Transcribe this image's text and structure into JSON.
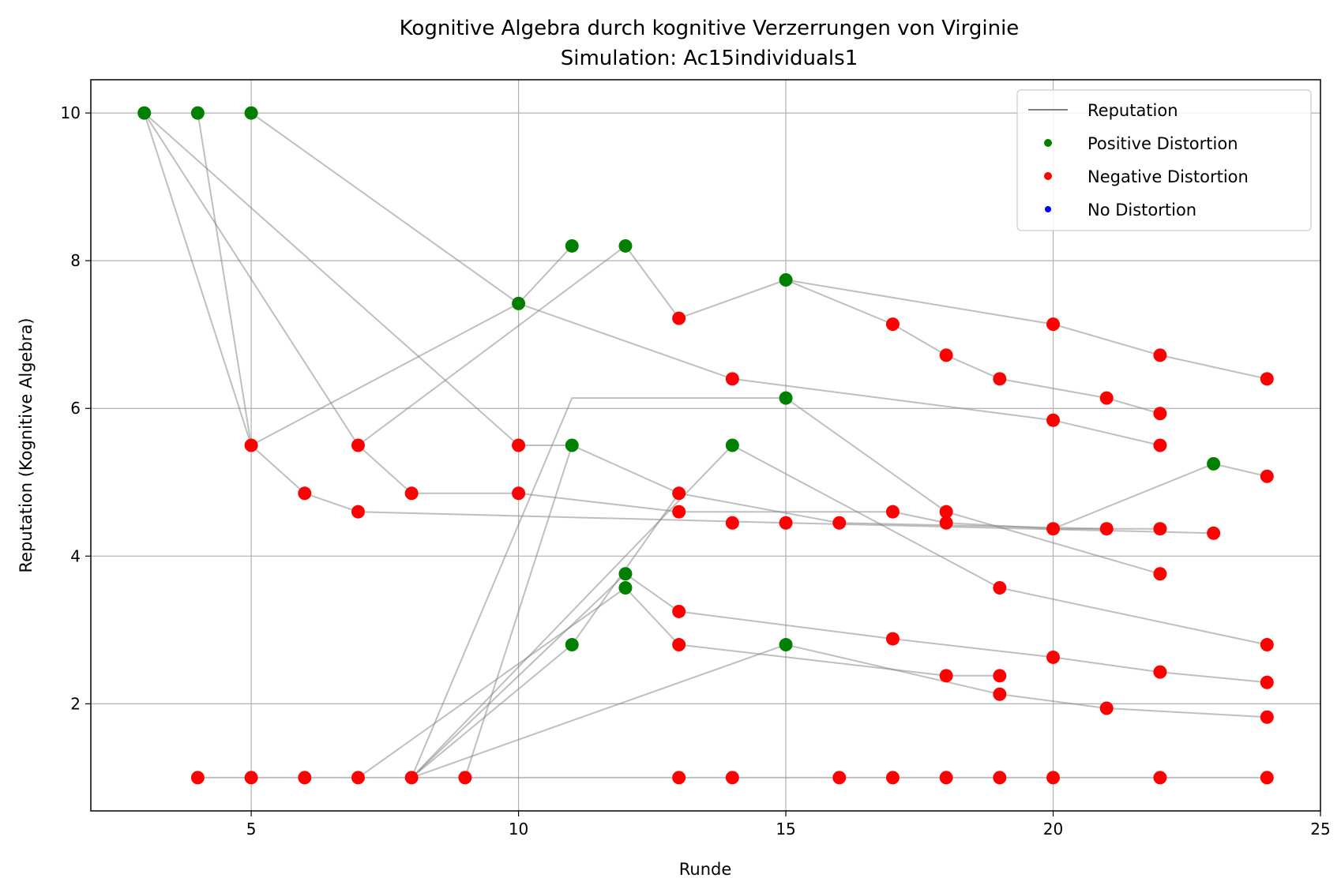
{
  "chart_data": {
    "type": "scatter",
    "title": "Kognitive Algebra durch kognitive Verzerrungen von Virginie",
    "subtitle": "Simulation: Ac15individuals1",
    "xlabel": "Runde",
    "ylabel": "Reputation (Kognitive Algebra)",
    "xlim": [
      2.0,
      25.0
    ],
    "ylim": [
      0.55,
      10.45
    ],
    "xticks": [
      5,
      10,
      15,
      20,
      25
    ],
    "yticks": [
      2,
      4,
      6,
      8,
      10
    ],
    "grid": true,
    "legend_position": "top-right",
    "legend": [
      "Reputation",
      "Positive Distortion",
      "Negative Distortion",
      "No Distortion"
    ],
    "colors": {
      "positive": "#008000",
      "negative": "#ff0000",
      "none": "#0000ff",
      "line": "#808080"
    },
    "trajectories": [
      [
        [
          3,
          10
        ],
        [
          7,
          5.5
        ],
        [
          8,
          4.85
        ],
        [
          10,
          4.85
        ],
        [
          13,
          4.6
        ],
        [
          17,
          4.6
        ],
        [
          18,
          4.45
        ],
        [
          20,
          4.37
        ],
        [
          22,
          4.37
        ]
      ],
      [
        [
          3,
          10
        ],
        [
          5,
          5.5
        ],
        [
          6,
          4.85
        ],
        [
          7,
          4.6
        ],
        [
          15,
          4.45
        ],
        [
          23,
          4.31
        ]
      ],
      [
        [
          4,
          10
        ],
        [
          5,
          5.5
        ],
        [
          10,
          7.42
        ],
        [
          11,
          8.2
        ]
      ],
      [
        [
          5,
          10
        ],
        [
          10,
          7.42
        ],
        [
          14,
          6.4
        ],
        [
          20,
          5.84
        ],
        [
          22,
          5.5
        ]
      ],
      [
        [
          3,
          10
        ],
        [
          10,
          5.5
        ],
        [
          11,
          5.5
        ],
        [
          13,
          4.85
        ],
        [
          16,
          4.45
        ],
        [
          21,
          4.37
        ]
      ],
      [
        [
          7,
          5.5
        ],
        [
          12,
          8.2
        ],
        [
          13,
          7.22
        ],
        [
          15,
          7.74
        ],
        [
          17,
          7.14
        ],
        [
          18,
          6.72
        ],
        [
          19,
          6.4
        ],
        [
          21,
          6.14
        ],
        [
          22,
          5.93
        ]
      ],
      [
        [
          15,
          7.74
        ],
        [
          20,
          7.14
        ],
        [
          22,
          6.72
        ],
        [
          24,
          6.4
        ]
      ],
      [
        [
          9,
          1
        ],
        [
          11,
          5.5
        ]
      ],
      [
        [
          8,
          1
        ],
        [
          11,
          6.14
        ],
        [
          15,
          6.14
        ],
        [
          18,
          4.6
        ],
        [
          22,
          3.76
        ]
      ],
      [
        [
          8,
          1
        ],
        [
          14,
          5.5
        ],
        [
          19,
          3.57
        ],
        [
          24,
          2.8
        ]
      ],
      [
        [
          8,
          1
        ],
        [
          12,
          3.76
        ],
        [
          13,
          3.25
        ],
        [
          17,
          2.88
        ],
        [
          20,
          2.63
        ],
        [
          22,
          2.43
        ],
        [
          24,
          2.29
        ]
      ],
      [
        [
          7,
          1
        ],
        [
          12,
          3.57
        ],
        [
          13,
          2.8
        ],
        [
          18,
          2.38
        ],
        [
          19,
          2.38
        ]
      ],
      [
        [
          8,
          1
        ],
        [
          15,
          2.8
        ],
        [
          19,
          2.13
        ],
        [
          21,
          1.94
        ],
        [
          24,
          1.82
        ]
      ],
      [
        [
          8,
          1
        ],
        [
          11,
          2.8
        ],
        [
          13,
          4.85
        ]
      ],
      [
        [
          20,
          4.37
        ],
        [
          23,
          5.25
        ],
        [
          24,
          5.08
        ]
      ],
      [
        [
          4,
          1
        ],
        [
          24,
          1
        ]
      ]
    ],
    "positive_points": [
      [
        3,
        10
      ],
      [
        4,
        10
      ],
      [
        5,
        10
      ],
      [
        10,
        7.42
      ],
      [
        11,
        8.2
      ],
      [
        12,
        8.2
      ],
      [
        15,
        7.74
      ],
      [
        15,
        6.14
      ],
      [
        11,
        5.5
      ],
      [
        14,
        5.5
      ],
      [
        23,
        5.25
      ],
      [
        12,
        3.76
      ],
      [
        12,
        3.57
      ],
      [
        11,
        2.8
      ],
      [
        15,
        2.8
      ]
    ],
    "negative_points": [
      [
        13,
        7.22
      ],
      [
        17,
        7.14
      ],
      [
        20,
        7.14
      ],
      [
        18,
        6.72
      ],
      [
        22,
        6.72
      ],
      [
        14,
        6.4
      ],
      [
        19,
        6.4
      ],
      [
        24,
        6.4
      ],
      [
        21,
        6.14
      ],
      [
        20,
        5.84
      ],
      [
        22,
        5.93
      ],
      [
        5,
        5.5
      ],
      [
        7,
        5.5
      ],
      [
        10,
        5.5
      ],
      [
        22,
        5.5
      ],
      [
        24,
        5.08
      ],
      [
        6,
        4.85
      ],
      [
        8,
        4.85
      ],
      [
        10,
        4.85
      ],
      [
        13,
        4.85
      ],
      [
        7,
        4.6
      ],
      [
        13,
        4.6
      ],
      [
        17,
        4.6
      ],
      [
        18,
        4.6
      ],
      [
        14,
        4.45
      ],
      [
        15,
        4.45
      ],
      [
        16,
        4.45
      ],
      [
        18,
        4.45
      ],
      [
        20,
        4.37
      ],
      [
        21,
        4.37
      ],
      [
        22,
        4.37
      ],
      [
        23,
        4.31
      ],
      [
        22,
        3.76
      ],
      [
        19,
        3.57
      ],
      [
        13,
        3.25
      ],
      [
        17,
        2.88
      ],
      [
        13,
        2.8
      ],
      [
        24,
        2.8
      ],
      [
        20,
        2.63
      ],
      [
        22,
        2.43
      ],
      [
        18,
        2.38
      ],
      [
        19,
        2.38
      ],
      [
        24,
        2.29
      ],
      [
        19,
        2.13
      ],
      [
        21,
        1.94
      ],
      [
        24,
        1.82
      ],
      [
        4,
        1
      ],
      [
        5,
        1
      ],
      [
        6,
        1
      ],
      [
        7,
        1
      ],
      [
        8,
        1
      ],
      [
        9,
        1
      ],
      [
        13,
        1
      ],
      [
        14,
        1
      ],
      [
        16,
        1
      ],
      [
        17,
        1
      ],
      [
        18,
        1
      ],
      [
        19,
        1
      ],
      [
        20,
        1
      ],
      [
        22,
        1
      ],
      [
        24,
        1
      ]
    ],
    "none_points": []
  }
}
